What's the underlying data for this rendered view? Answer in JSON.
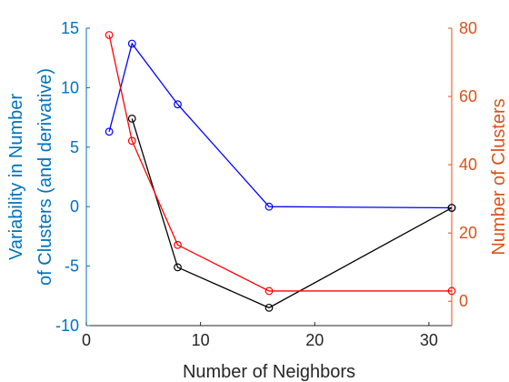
{
  "chart_data": {
    "type": "line",
    "xlabel": "Number of Neighbors",
    "ylabel_left": [
      "Variability in Number",
      "of Clusters (and derivative)"
    ],
    "ylabel_right": "Number of Clusters",
    "xlim": [
      0,
      32
    ],
    "ylim_left": [
      -10,
      15
    ],
    "ylim_right": [
      -7.14,
      80
    ],
    "xticks": [
      0,
      10,
      20,
      30
    ],
    "yticks_left": [
      -10,
      -5,
      0,
      5,
      10,
      15
    ],
    "yticks_right": [
      0,
      20,
      40,
      60,
      80
    ],
    "grid": false,
    "legend": "none",
    "series": [
      {
        "axis": "left",
        "color": "#0000ff",
        "marker": "circle",
        "x": [
          2,
          4,
          8,
          16,
          32
        ],
        "y": [
          6.3,
          13.7,
          8.6,
          0.0,
          -0.1
        ]
      },
      {
        "axis": "left",
        "color": "#000000",
        "marker": "circle",
        "x": [
          4,
          8,
          16,
          32
        ],
        "y": [
          7.4,
          -5.1,
          -8.5,
          -0.1
        ]
      },
      {
        "axis": "right",
        "color": "#ff0000",
        "marker": "circle",
        "x": [
          2,
          4,
          8,
          16,
          32
        ],
        "y": [
          78,
          47,
          16.5,
          3,
          3
        ]
      }
    ],
    "colors": {
      "left_axis": "#0072bd",
      "right_axis": "#d95319",
      "x_axis": "#262626"
    }
  }
}
